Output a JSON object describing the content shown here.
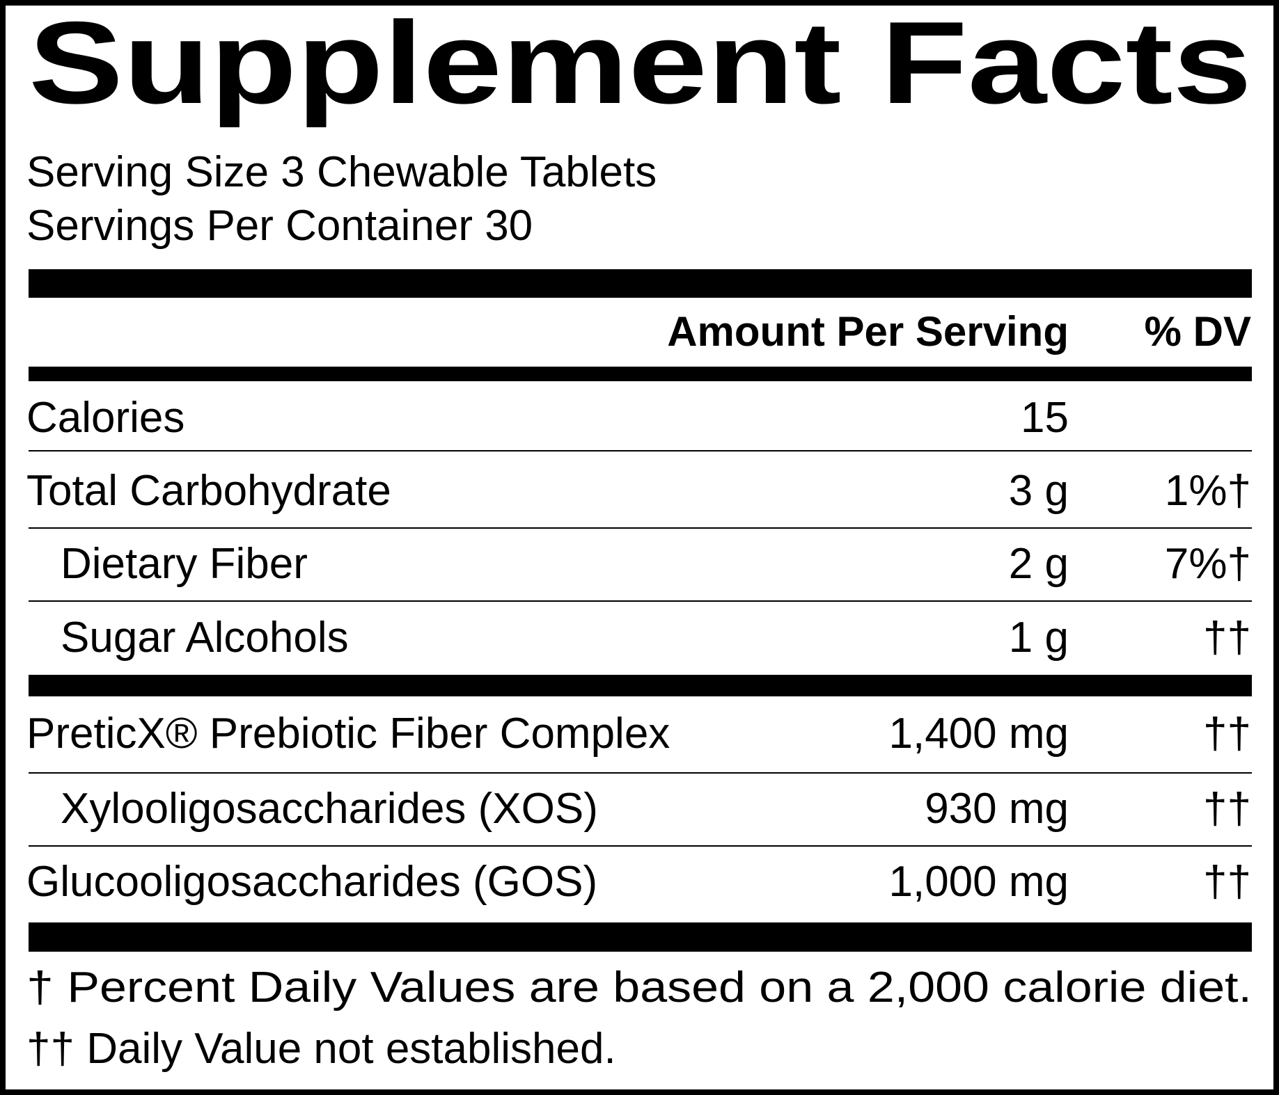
{
  "header": {
    "title": "Supplement Facts",
    "serving_size": "Serving Size 3 Chewable Tablets",
    "servings_per_container": "Servings Per Container 30"
  },
  "table": {
    "columns": [
      "Amount Per Serving",
      "% DV"
    ],
    "rows": [
      {
        "name": "Calories",
        "amount": "15"
      },
      {
        "name": "Total Carbohydrate",
        "amount": "3 g",
        "dv": "1%†"
      },
      {
        "name": "Dietary Fiber",
        "amount": "2 g",
        "dv": "7%†"
      },
      {
        "name": "Sugar Alcohols",
        "amount": "1 g",
        "dv": "††"
      },
      {
        "name": "PreticX® Prebiotic Fiber Complex",
        "amount": "1,400 mg",
        "dv": "††"
      },
      {
        "name": "Xylooligosaccharides (XOS)",
        "amount": "930 mg",
        "dv": "††"
      },
      {
        "name": "Glucooligosaccharides (GOS)",
        "amount": "1,000 mg",
        "dv": "††"
      }
    ]
  },
  "footnotes": [
    "† Percent Daily Values are based on a 2,000 calorie diet.",
    "†† Daily Value not established."
  ]
}
